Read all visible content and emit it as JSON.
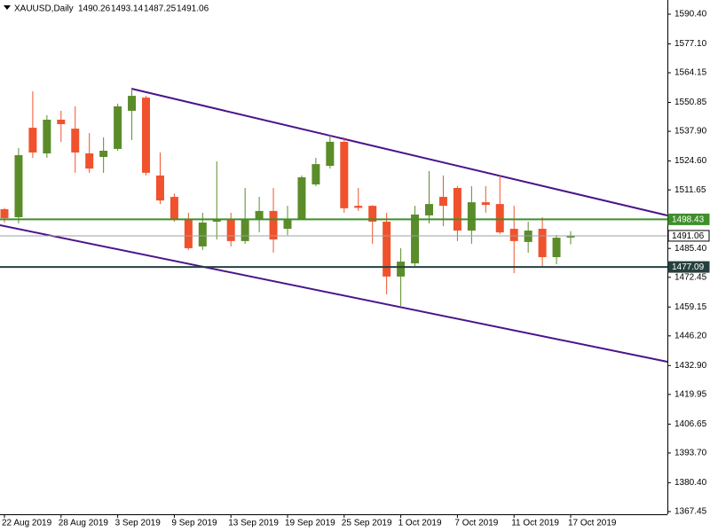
{
  "chart_data": {
    "type": "candlestick",
    "title": "XAUUSD,Daily",
    "categories": [
      "22 Aug 2019",
      null,
      null,
      null,
      "28 Aug 2019",
      null,
      null,
      null,
      "3 Sep 2019",
      null,
      null,
      null,
      "9 Sep 2019",
      null,
      null,
      null,
      "13 Sep 2019",
      null,
      null,
      null,
      "19 Sep 2019",
      null,
      null,
      null,
      "25 Sep 2019",
      null,
      null,
      null,
      "1 Oct 2019",
      null,
      null,
      null,
      "7 Oct 2019",
      null,
      null,
      null,
      "11 Oct 2019",
      null,
      null,
      null,
      "17 Oct 2019"
    ],
    "open": [
      1503.0,
      1499.4,
      1539.5,
      1528.0,
      1543.1,
      1539.1,
      1528.0,
      1526.4,
      1530.0,
      1547.1,
      1553.0,
      1518.1,
      1508.5,
      1498.6,
      1486.3,
      1497.4,
      1498.6,
      1488.7,
      1498.6,
      1502.2,
      1494.2,
      1498.6,
      1514.1,
      1522.4,
      1533.2,
      1504.5,
      1504.5,
      1497.4,
      1472.8,
      1478.7,
      1500.2,
      1508.5,
      1512.5,
      1493.4,
      1506.1,
      1505.3,
      1494.2,
      1488.3,
      1494.2,
      1481.5,
      1490.26
    ],
    "high": [
      1503.5,
      1530.4,
      1555.8,
      1545.1,
      1547.1,
      1549.1,
      1537.1,
      1535.2,
      1550.3,
      1557.0,
      1553.8,
      1528.4,
      1510.0,
      1501.4,
      1501.4,
      1524.4,
      1501.4,
      1512.5,
      1508.5,
      1512.5,
      1504.5,
      1518.1,
      1526.0,
      1536.3,
      1535.2,
      1512.5,
      1504.8,
      1501.4,
      1485.5,
      1504.5,
      1520.1,
      1518.1,
      1513.3,
      1513.3,
      1513.3,
      1518.1,
      1504.5,
      1497.4,
      1499.4,
      1491.4,
      1493.14
    ],
    "low": [
      1497.0,
      1496.6,
      1526.0,
      1526.0,
      1533.2,
      1519.3,
      1519.3,
      1519.3,
      1529.2,
      1534.0,
      1518.1,
      1505.3,
      1497.4,
      1484.7,
      1484.7,
      1489.4,
      1486.3,
      1487.5,
      1492.6,
      1483.5,
      1491.4,
      1498.2,
      1513.3,
      1521.2,
      1501.4,
      1502.2,
      1487.5,
      1464.8,
      1459.6,
      1477.5,
      1496.6,
      1495.4,
      1488.7,
      1487.5,
      1501.4,
      1491.8,
      1474.3,
      1483.5,
      1477.5,
      1478.3,
      1487.25
    ],
    "close": [
      1499.0,
      1527.2,
      1528.4,
      1543.1,
      1541.1,
      1528.4,
      1521.2,
      1529.2,
      1549.1,
      1553.8,
      1519.3,
      1506.9,
      1498.6,
      1485.5,
      1497.0,
      1498.6,
      1488.7,
      1498.6,
      1502.2,
      1489.4,
      1498.6,
      1517.3,
      1523.2,
      1533.2,
      1503.4,
      1503.6,
      1497.4,
      1472.8,
      1479.5,
      1500.6,
      1505.3,
      1504.5,
      1493.4,
      1506.1,
      1504.9,
      1492.6,
      1488.7,
      1493.4,
      1481.5,
      1490.2,
      1491.06
    ],
    "up_color": "#5b8c2a",
    "down_color": "#f0522d",
    "ylim": [
      1366.24,
      1596.76
    ],
    "yticks": [
      {
        "value": 1590.4,
        "label": "1590.40"
      },
      {
        "value": 1577.1,
        "label": "1577.10"
      },
      1564.15,
      1550.85,
      {
        "value": 1537.9,
        "label": "1537.90"
      },
      {
        "value": 1524.6,
        "label": "1524.60"
      },
      1511.65,
      {
        "value": 1485.4,
        "label": "1485.40"
      },
      1472.45,
      1459.15,
      {
        "value": 1446.2,
        "label": "1446.20"
      },
      {
        "value": 1432.9,
        "label": "1432.90"
      },
      1419.95,
      1406.65,
      {
        "value": 1393.7,
        "label": "1393.70"
      },
      {
        "value": 1380.4,
        "label": "1380.40"
      },
      1367.45
    ],
    "levels": [
      {
        "value": 1498.43,
        "color": "#3f8f2b"
      },
      {
        "value": 1477.09,
        "color": "#26403f"
      }
    ],
    "current_price_color": "#9aa0a6"
  }
}
